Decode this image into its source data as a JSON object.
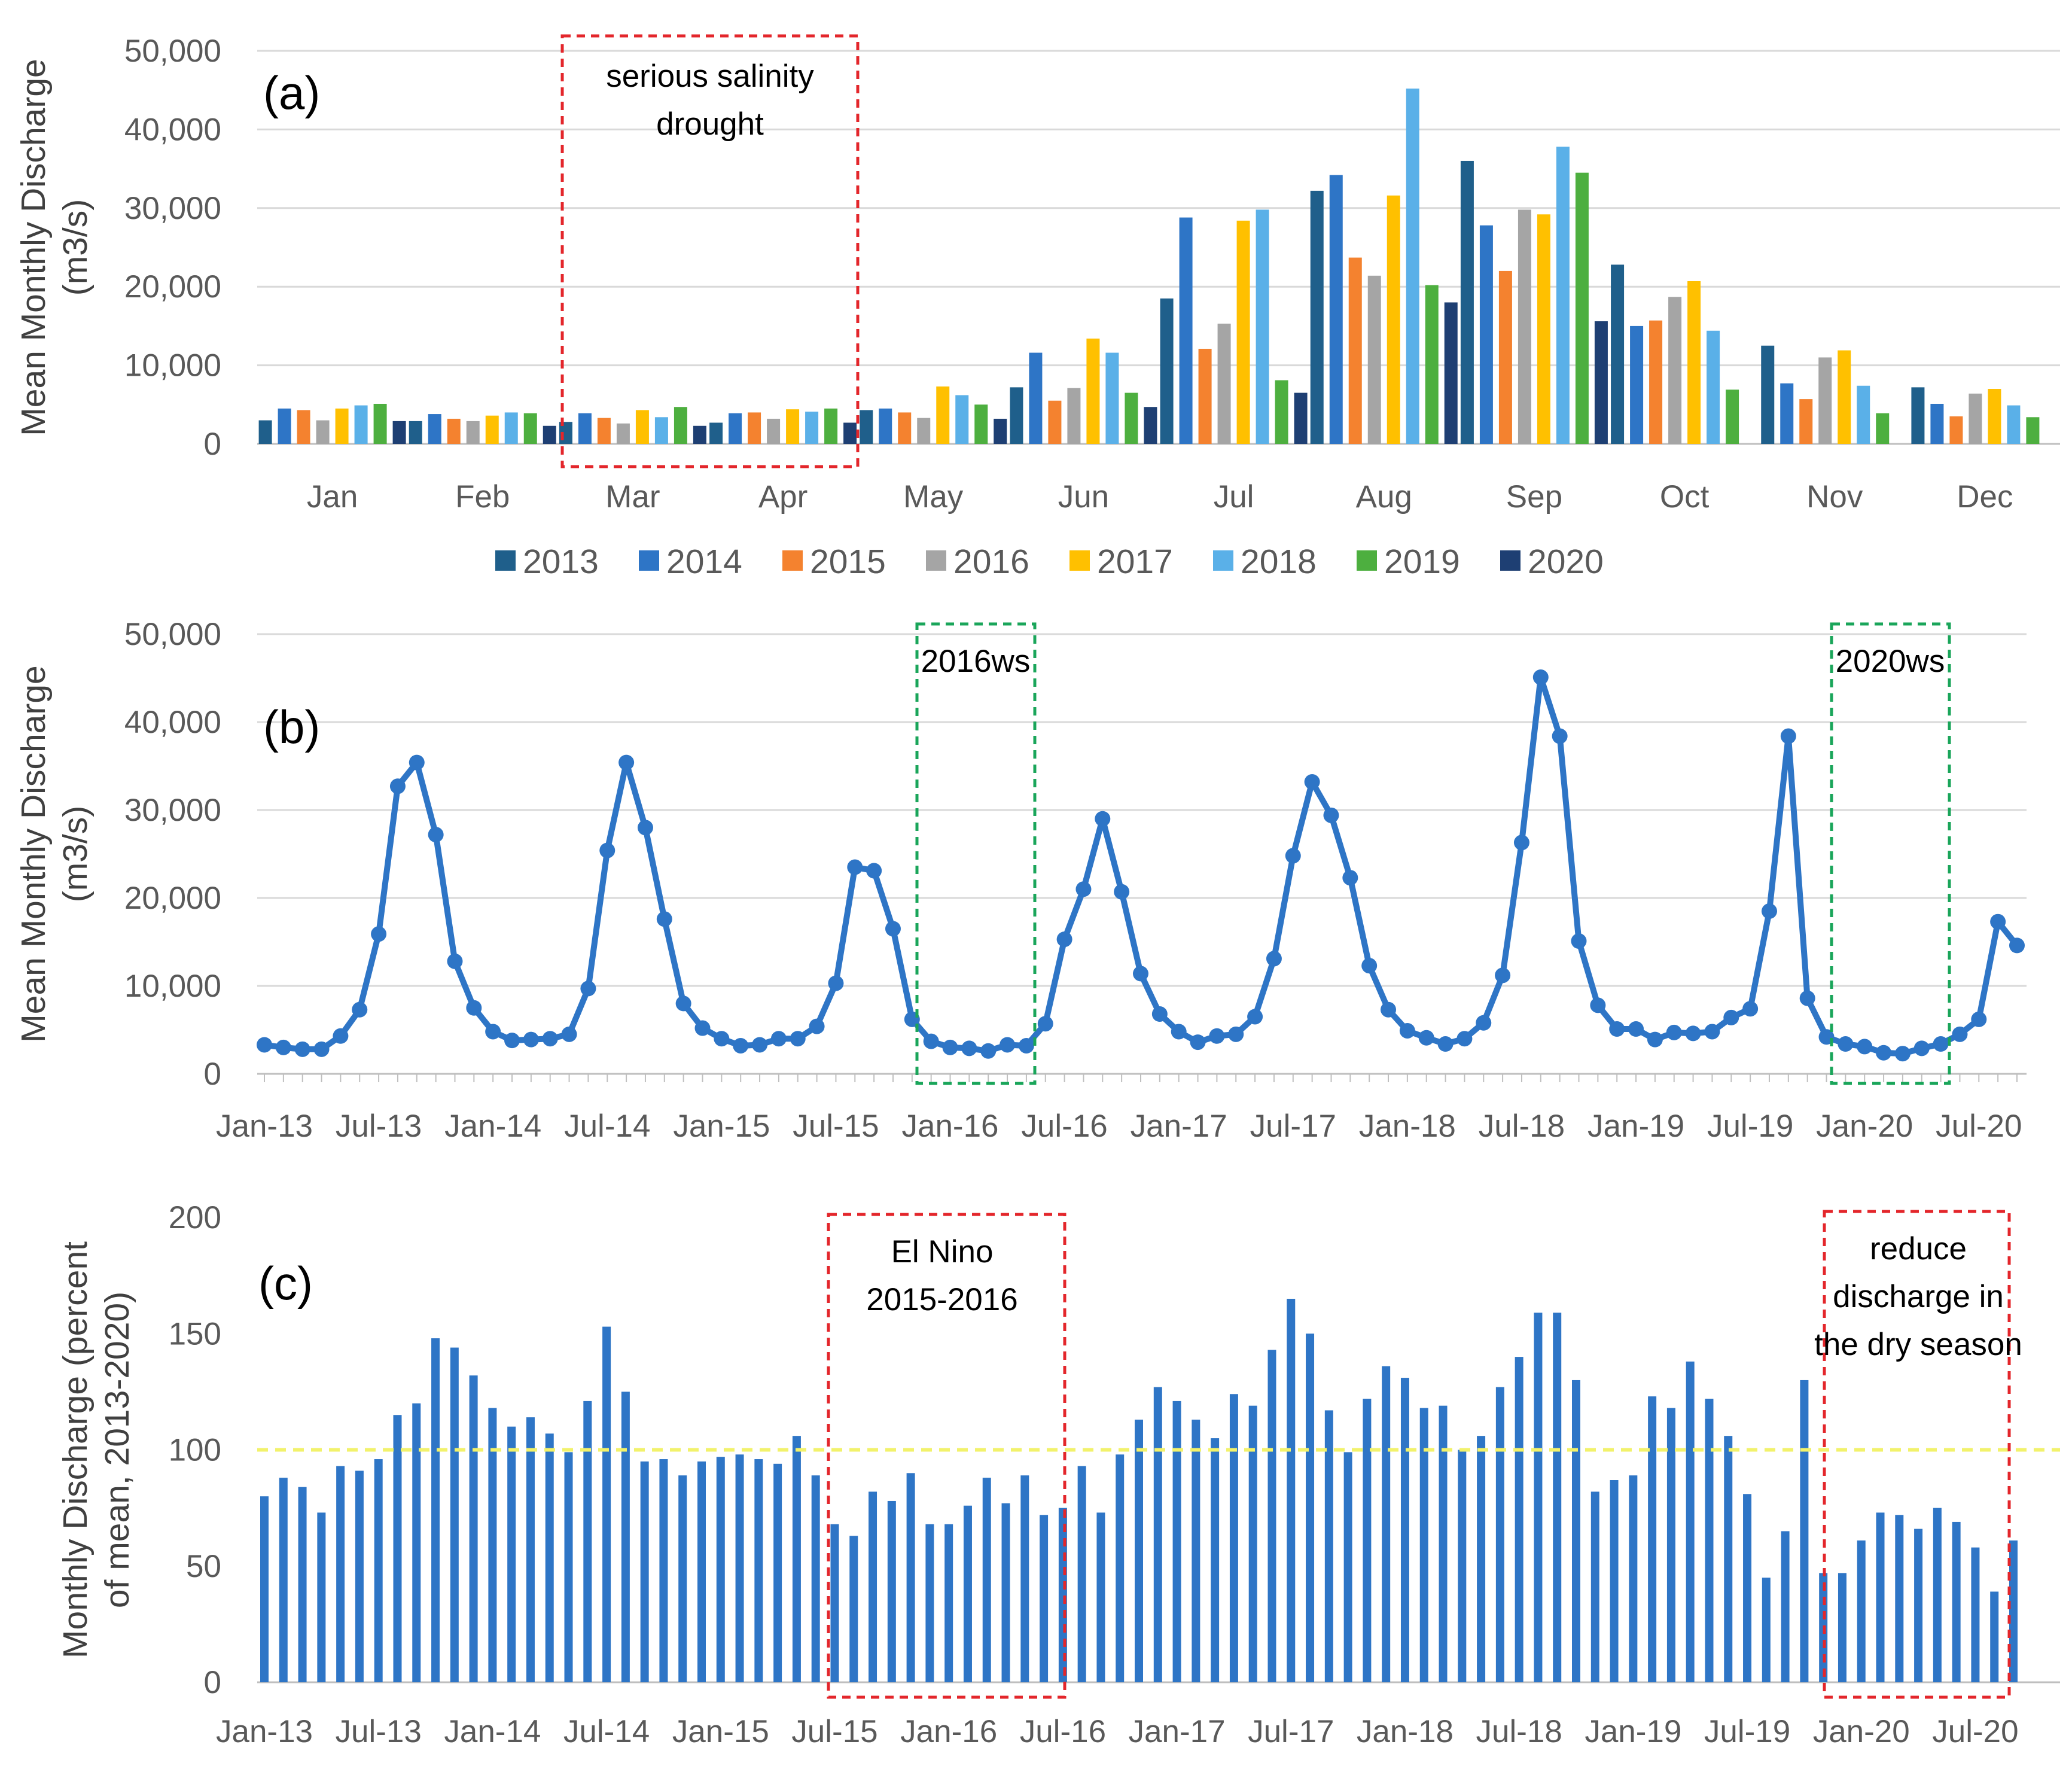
{
  "chart_data": [
    {
      "type": "bar",
      "panel_label": "(a)",
      "ylabel_lines": [
        "Mean Monthly Discharge",
        "(m3/s)"
      ],
      "ylim": [
        0,
        50000
      ],
      "yticks": [
        "0",
        "10,000",
        "20,000",
        "30,000",
        "40,000",
        "50,000"
      ],
      "categories": [
        "Jan",
        "Feb",
        "Mar",
        "Apr",
        "May",
        "Jun",
        "Jul",
        "Aug",
        "Sep",
        "Oct",
        "Nov",
        "Dec"
      ],
      "series": [
        {
          "name": "2013",
          "color": "#1f5f8b",
          "values": [
            3000,
            2900,
            2800,
            2700,
            4300,
            7200,
            18500,
            32200,
            36000,
            22800,
            12500,
            7200
          ]
        },
        {
          "name": "2014",
          "color": "#2e75c6",
          "values": [
            4500,
            3800,
            3900,
            3900,
            4500,
            11600,
            28800,
            34200,
            27800,
            15000,
            7700,
            5100
          ]
        },
        {
          "name": "2015",
          "color": "#f4822f",
          "values": [
            4300,
            3200,
            3300,
            4000,
            4000,
            5500,
            12100,
            23700,
            22000,
            15700,
            5700,
            3500
          ]
        },
        {
          "name": "2016",
          "color": "#a5a5a5",
          "values": [
            3000,
            2900,
            2600,
            3200,
            3300,
            7100,
            15300,
            21400,
            29800,
            18700,
            11000,
            6400
          ]
        },
        {
          "name": "2017",
          "color": "#ffc000",
          "values": [
            4500,
            3600,
            4300,
            4400,
            7300,
            13400,
            28400,
            31600,
            29200,
            20700,
            11900,
            7000
          ]
        },
        {
          "name": "2018",
          "color": "#5ab0e8",
          "values": [
            4900,
            4000,
            3400,
            4100,
            6200,
            11600,
            29800,
            45200,
            37800,
            14400,
            7400,
            4900
          ]
        },
        {
          "name": "2019",
          "color": "#4daf3f",
          "values": [
            5100,
            3900,
            4700,
            4500,
            5000,
            6500,
            8100,
            20200,
            34500,
            6900,
            3900,
            3400
          ]
        },
        {
          "name": "2020",
          "color": "#1e3f73",
          "values": [
            2900,
            2300,
            2300,
            2700,
            3200,
            4700,
            6500,
            18000,
            15600,
            null,
            null,
            null
          ]
        }
      ],
      "legend_placement": "bottom-center",
      "annotation": {
        "lines": [
          "serious salinity",
          "drought"
        ],
        "span": [
          "Mar",
          "Apr"
        ]
      }
    },
    {
      "type": "line",
      "panel_label": "(b)",
      "ylabel_lines": [
        "Mean Monthly Discharge",
        "(m3/s)"
      ],
      "ylim": [
        0,
        50000
      ],
      "yticks": [
        "0",
        "10,000",
        "20,000",
        "30,000",
        "40,000",
        "50,000"
      ],
      "xticks": [
        "Jan-13",
        "Jul-13",
        "Jan-14",
        "Jul-14",
        "Jan-15",
        "Jul-15",
        "Jan-16",
        "Jul-16",
        "Jan-17",
        "Jul-17",
        "Jan-18",
        "Jul-18",
        "Jan-19",
        "Jul-19",
        "Jan-20",
        "Jul-20"
      ],
      "color": "#2e75c6",
      "values": [
        3300,
        3000,
        2800,
        2800,
        4300,
        7300,
        15900,
        32700,
        35400,
        27200,
        12800,
        7500,
        4800,
        3800,
        3900,
        4000,
        4500,
        9700,
        25400,
        35400,
        28000,
        17600,
        8000,
        5200,
        4000,
        3200,
        3300,
        4000,
        4000,
        5400,
        10300,
        23500,
        23100,
        16500,
        6200,
        3700,
        3000,
        2900,
        2600,
        3300,
        3200,
        5700,
        15300,
        21000,
        29000,
        20700,
        11400,
        6800,
        4800,
        3600,
        4300,
        4500,
        6500,
        13100,
        24800,
        33200,
        29400,
        22300,
        12300,
        7300,
        4900,
        4100,
        3400,
        4000,
        5800,
        11200,
        26300,
        45100,
        38400,
        15100,
        7800,
        5100,
        5100,
        3900,
        4700,
        4600,
        4800,
        6400,
        7400,
        18500,
        38400,
        8600,
        4200,
        3400,
        3100,
        2400,
        2300,
        2900,
        3400,
        4500,
        6200,
        17300,
        14600
      ],
      "annotations": [
        {
          "text": "2016ws",
          "span": [
            "Dec-15",
            "Jun-16"
          ]
        },
        {
          "text": "2020ws",
          "span": [
            "Dec-19",
            "Jun-20"
          ]
        }
      ]
    },
    {
      "type": "bar",
      "panel_label": "(c)",
      "ylabel_lines": [
        "Monthly Discharge (percent",
        "of mean, 2013-2020)"
      ],
      "ylim": [
        0,
        200
      ],
      "yticks": [
        "0",
        "50",
        "100",
        "150",
        "200"
      ],
      "reference_line": 100,
      "reference_color": "#f2f26b",
      "color": "#2e75c6",
      "xticks": [
        "Jan-13",
        "Jul-13",
        "Jan-14",
        "Jul-14",
        "Jan-15",
        "Jul-15",
        "Jan-16",
        "Jul-16",
        "Jan-17",
        "Jul-17",
        "Jan-18",
        "Jul-18",
        "Jan-19",
        "Jul-19",
        "Jan-20",
        "Jul-20"
      ],
      "values": [
        80,
        88,
        84,
        73,
        93,
        91,
        96,
        115,
        120,
        148,
        144,
        132,
        118,
        110,
        114,
        107,
        99,
        121,
        153,
        125,
        95,
        96,
        89,
        95,
        97,
        98,
        96,
        94,
        106,
        89,
        68,
        63,
        82,
        78,
        90,
        68,
        68,
        76,
        88,
        77,
        89,
        72,
        75,
        93,
        73,
        98,
        113,
        127,
        121,
        113,
        105,
        124,
        119,
        143,
        165,
        150,
        117,
        99,
        122,
        136,
        131,
        118,
        119,
        100,
        106,
        127,
        140,
        159,
        159,
        130,
        82,
        87,
        89,
        123,
        118,
        138,
        122,
        106,
        81,
        45,
        65,
        130,
        47,
        47,
        61,
        73,
        72,
        66,
        75,
        69,
        58,
        39,
        61
      ],
      "annotations": [
        {
          "lines": [
            "El Nino",
            "2015-2016"
          ],
          "span": [
            "Jul-15",
            "Jun-16"
          ]
        },
        {
          "lines": [
            "reduce",
            "discharge in",
            "the dry season"
          ],
          "span": [
            "Nov-19",
            "Jul-20"
          ]
        }
      ]
    }
  ]
}
